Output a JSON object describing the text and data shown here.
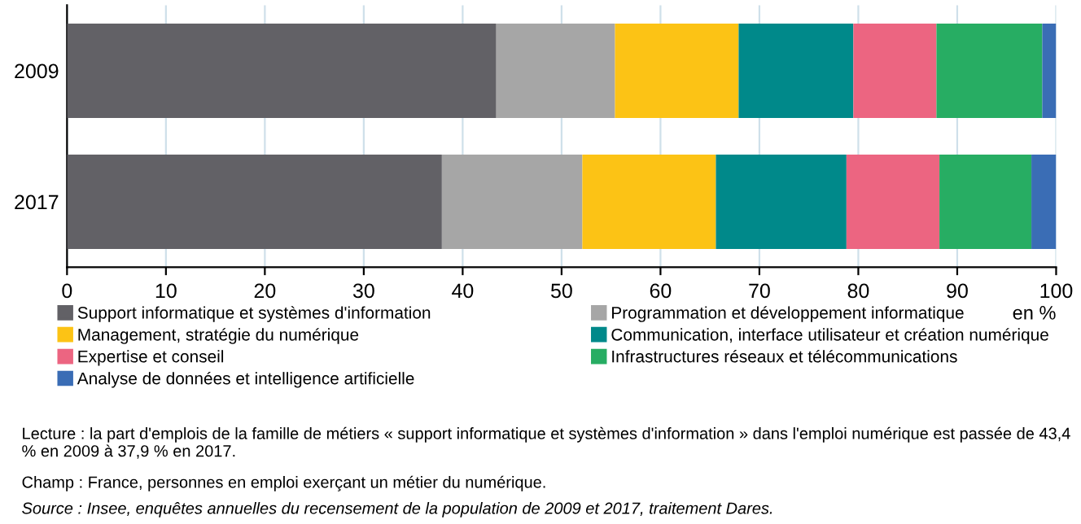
{
  "chart_data": {
    "type": "bar",
    "orientation": "horizontal",
    "stacked": true,
    "categories": [
      "2009",
      "2017"
    ],
    "series": [
      {
        "name": "Support informatique et systèmes d'information",
        "color": "#626166",
        "values": [
          43.4,
          37.9
        ]
      },
      {
        "name": "Programmation et développement informatique",
        "color": "#a6a6a6",
        "values": [
          12.0,
          14.2
        ]
      },
      {
        "name": "Management, stratégie du numérique",
        "color": "#fcc315",
        "values": [
          12.5,
          13.5
        ]
      },
      {
        "name": "Communication, interface utilisateur et création numérique",
        "color": "#00898a",
        "values": [
          11.6,
          13.2
        ]
      },
      {
        "name": "Expertise et conseil",
        "color": "#ec6581",
        "values": [
          8.4,
          9.4
        ]
      },
      {
        "name": "Infrastructures réseaux et télécommunications",
        "color": "#27ad63",
        "values": [
          10.7,
          9.3
        ]
      },
      {
        "name": "Analyse de données et intelligence artificielle",
        "color": "#3a6db5",
        "values": [
          1.4,
          2.5
        ]
      }
    ],
    "xlim": [
      0,
      100
    ],
    "xticks": [
      0,
      10,
      20,
      30,
      40,
      50,
      60,
      70,
      80,
      90,
      100
    ],
    "xlabel": "en %",
    "grid": "x",
    "legend": "bottom",
    "annotations": [
      "Lecture : la part d'emplois de la famille de métiers « support informatique et systèmes d'information » dans l'emploi numérique est passée de 43,4 % en 2009 à 37,9 % en 2017.",
      "Champ : France, personnes en emploi exerçant un métier du numérique.",
      "Source : Insee, enquêtes annuelles du recensement de la population de 2009 et 2017, traitement Dares."
    ]
  }
}
